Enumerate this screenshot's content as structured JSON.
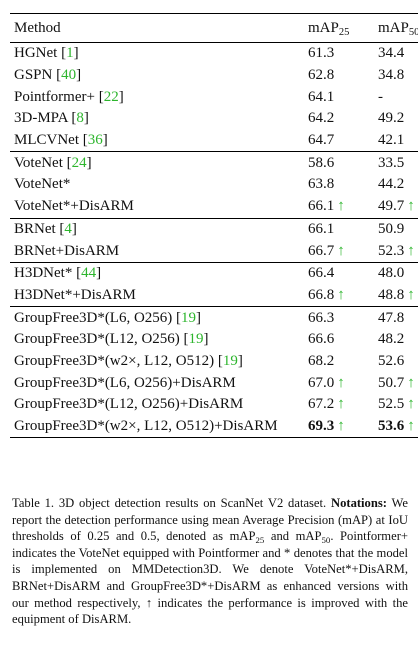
{
  "header": {
    "method": "Method",
    "map25": {
      "text": "mAP",
      "sub": "25"
    },
    "map50": {
      "text": "mAP",
      "sub": "50"
    }
  },
  "table": {
    "groups": [
      [
        {
          "method": "HGNet [",
          "ref": "1",
          "end": "]",
          "map25": "61.3",
          "map50": "34.4"
        },
        {
          "method": "GSPN [",
          "ref": "40",
          "end": "]",
          "map25": "62.8",
          "map50": "34.8"
        },
        {
          "method": "Pointformer+ [",
          "ref": "22",
          "end": "]",
          "map25": "64.1",
          "map50": "-"
        },
        {
          "method": "3D-MPA [",
          "ref": "8",
          "end": "]",
          "map25": "64.2",
          "map50": "49.2"
        },
        {
          "method": "MLCVNet [",
          "ref": "36",
          "end": "]",
          "map25": "64.7",
          "map50": "42.1"
        }
      ],
      [
        {
          "method": "VoteNet [",
          "ref": "24",
          "end": "]",
          "map25": "58.6",
          "map50": "33.5"
        },
        {
          "method": "VoteNet*",
          "map25": "63.8",
          "map50": "44.2"
        },
        {
          "method": "VoteNet*+DisARM",
          "map25": "66.1",
          "map25_arrow": "↑",
          "map50": "49.7",
          "map50_arrow": "↑"
        }
      ],
      [
        {
          "method": "BRNet [",
          "ref": "4",
          "end": "]",
          "map25": "66.1",
          "map50": "50.9"
        },
        {
          "method": "BRNet+DisARM",
          "map25": "66.7",
          "map25_arrow": "↑",
          "map50": "52.3",
          "map50_arrow": "↑"
        }
      ],
      [
        {
          "method": "H3DNet* [",
          "ref": "44",
          "end": "]",
          "map25": "66.4",
          "map50": "48.0"
        },
        {
          "method": "H3DNet*+DisARM",
          "map25": "66.8",
          "map25_arrow": "↑",
          "map50": "48.8",
          "map50_arrow": "↑"
        }
      ],
      [
        {
          "method": "GroupFree3D*(L6, O256) [",
          "ref": "19",
          "end": "]",
          "map25": "66.3",
          "map50": "47.8"
        },
        {
          "method": "GroupFree3D*(L12, O256) [",
          "ref": "19",
          "end": "]",
          "map25": "66.6",
          "map50": "48.2"
        },
        {
          "method": "GroupFree3D*(w2×, L12, O512) [",
          "ref": "19",
          "end": "]",
          "map25": "68.2",
          "map50": "52.6"
        },
        {
          "method": "GroupFree3D*(L6, O256)+DisARM",
          "map25": "67.0",
          "map25_arrow": "↑",
          "map50": "50.7",
          "map50_arrow": "↑"
        },
        {
          "method": "GroupFree3D*(L12, O256)+DisARM",
          "map25": "67.2",
          "map25_arrow": "↑",
          "map50": "52.5",
          "map50_arrow": "↑"
        },
        {
          "method": "GroupFree3D*(w2×, L12, O512)+DisARM",
          "map25": "69.3",
          "map25_arrow": "↑",
          "map50": "53.6",
          "map50_arrow": "↑",
          "bold": true
        }
      ]
    ]
  },
  "caption": [
    {
      "text": "Table 1. 3D object detection results on ScanNet V2 dataset. "
    },
    {
      "text": "Notations:",
      "bold": true
    },
    {
      "text": " We report the detection performance using mean Average Precision (mAP) at IoU thresholds of 0.25 and 0.5, denoted as mAP"
    },
    {
      "text": "25",
      "sub": true
    },
    {
      "text": " and mAP"
    },
    {
      "text": "50",
      "sub": true
    },
    {
      "text": ". Pointformer+ indicates the VoteNet equipped with Pointformer and * denotes that the model is implemented on MMDetection3D. We denote VoteNet*+DisARM, BRNet+DisARM and GroupFree3D*+DisARM as enhanced versions with our method respectively, ↑ indicates the performance is improved with the equipment of DisARM."
    }
  ]
}
